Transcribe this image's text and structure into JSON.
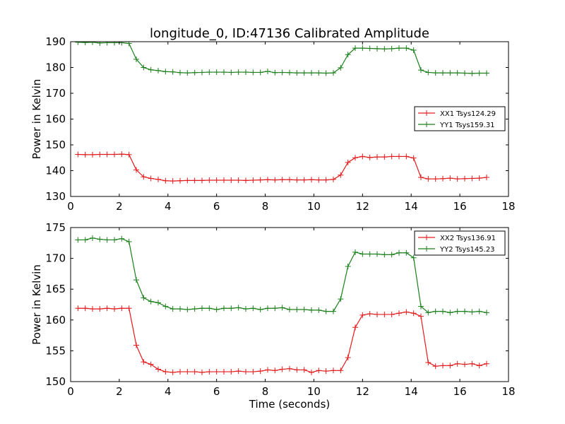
{
  "figure": {
    "title": "longitude_0, ID:47136 Calibrated Amplitude",
    "xlabel": "Time (seconds)",
    "colors": {
      "xx": "#e31a1c",
      "yy": "#1a7f1a"
    }
  },
  "chart_data": [
    {
      "type": "line",
      "title": "longitude_0, ID:47136 Calibrated Amplitude",
      "xlabel": "",
      "ylabel": "Power in Kelvin",
      "xlim": [
        0,
        18
      ],
      "ylim": [
        130,
        190
      ],
      "xticks": [
        "0",
        "2",
        "4",
        "6",
        "8",
        "10",
        "12",
        "14",
        "16",
        "18"
      ],
      "yticks": [
        "130",
        "140",
        "150",
        "160",
        "170",
        "180",
        "190"
      ],
      "grid": false,
      "legend_position": "right",
      "x": [
        0.3,
        0.6,
        0.9,
        1.2,
        1.5,
        1.8,
        2.1,
        2.4,
        2.7,
        3.0,
        3.3,
        3.6,
        3.9,
        4.2,
        4.5,
        4.8,
        5.1,
        5.4,
        5.7,
        6.0,
        6.3,
        6.6,
        6.9,
        7.2,
        7.5,
        7.8,
        8.1,
        8.4,
        8.7,
        9.0,
        9.3,
        9.6,
        9.9,
        10.2,
        10.5,
        10.8,
        11.1,
        11.4,
        11.7,
        12.0,
        12.3,
        12.6,
        12.9,
        13.2,
        13.5,
        13.8,
        14.1,
        14.4,
        14.7,
        15.0,
        15.3,
        15.6,
        15.9,
        16.2,
        16.5,
        16.8,
        17.1
      ],
      "series": [
        {
          "name": "XX1 Tsys124.29",
          "color": "#e31a1c",
          "values": [
            146.3,
            146.2,
            146.2,
            146.3,
            146.3,
            146.3,
            146.4,
            146.2,
            140.3,
            137.6,
            137.0,
            136.6,
            136.1,
            136.0,
            136.1,
            136.2,
            136.2,
            136.2,
            136.3,
            136.3,
            136.3,
            136.3,
            136.3,
            136.2,
            136.3,
            136.4,
            136.5,
            136.4,
            136.5,
            136.5,
            136.4,
            136.4,
            136.5,
            136.4,
            136.4,
            136.6,
            138.3,
            143.2,
            145.0,
            145.5,
            145.1,
            145.3,
            145.3,
            145.5,
            145.5,
            145.5,
            144.9,
            137.4,
            136.8,
            136.8,
            136.9,
            137.1,
            136.8,
            136.9,
            137.0,
            137.1,
            137.4
          ]
        },
        {
          "name": "YY1 Tsys159.31",
          "color": "#1a7f1a",
          "values": [
            189.8,
            189.7,
            189.8,
            189.5,
            189.6,
            189.6,
            189.6,
            189.3,
            183.2,
            180.0,
            179.1,
            178.8,
            178.4,
            178.3,
            178.0,
            177.9,
            178.0,
            178.1,
            178.2,
            178.2,
            178.2,
            178.1,
            178.2,
            178.2,
            178.1,
            178.1,
            178.5,
            178.0,
            178.1,
            178.0,
            177.9,
            177.9,
            177.9,
            177.9,
            177.8,
            177.9,
            179.9,
            185.0,
            187.5,
            187.5,
            187.4,
            187.3,
            187.2,
            187.3,
            187.5,
            187.5,
            186.7,
            179.0,
            178.1,
            177.9,
            177.9,
            177.9,
            177.9,
            177.8,
            177.7,
            177.8,
            177.8
          ]
        }
      ]
    },
    {
      "type": "line",
      "title": "",
      "xlabel": "Time (seconds)",
      "ylabel": "Power in Kelvin",
      "xlim": [
        0,
        18
      ],
      "ylim": [
        150,
        175
      ],
      "xticks": [
        "0",
        "2",
        "4",
        "6",
        "8",
        "10",
        "12",
        "14",
        "16",
        "18"
      ],
      "yticks": [
        "150",
        "155",
        "160",
        "165",
        "170",
        "175"
      ],
      "grid": false,
      "legend_position": "top-right",
      "x": [
        0.3,
        0.6,
        0.9,
        1.2,
        1.5,
        1.8,
        2.1,
        2.4,
        2.7,
        3.0,
        3.3,
        3.6,
        3.9,
        4.2,
        4.5,
        4.8,
        5.1,
        5.4,
        5.7,
        6.0,
        6.3,
        6.6,
        6.9,
        7.2,
        7.5,
        7.8,
        8.1,
        8.4,
        8.7,
        9.0,
        9.3,
        9.6,
        9.9,
        10.2,
        10.5,
        10.8,
        11.1,
        11.4,
        11.7,
        12.0,
        12.3,
        12.6,
        12.9,
        13.2,
        13.5,
        13.8,
        14.1,
        14.4,
        14.7,
        15.0,
        15.3,
        15.6,
        15.9,
        16.2,
        16.5,
        16.8,
        17.1
      ],
      "series": [
        {
          "name": "XX2 Tsys136.91",
          "color": "#e31a1c",
          "values": [
            161.9,
            161.9,
            161.8,
            161.8,
            161.9,
            161.8,
            161.9,
            161.9,
            155.9,
            153.2,
            152.8,
            152.0,
            151.6,
            151.5,
            151.6,
            151.6,
            151.6,
            151.5,
            151.6,
            151.6,
            151.6,
            151.6,
            151.7,
            151.6,
            151.6,
            151.7,
            151.9,
            151.8,
            152.0,
            152.1,
            151.9,
            151.9,
            151.5,
            151.8,
            151.7,
            151.8,
            151.8,
            153.9,
            158.8,
            160.8,
            161.0,
            160.9,
            160.9,
            160.9,
            161.1,
            161.3,
            161.1,
            160.6,
            153.1,
            152.5,
            152.6,
            152.6,
            152.9,
            152.8,
            152.9,
            152.6,
            152.9
          ]
        },
        {
          "name": "YY2 Tsys145.23",
          "color": "#1a7f1a",
          "values": [
            173.0,
            173.0,
            173.3,
            173.1,
            173.0,
            173.0,
            173.2,
            172.7,
            166.5,
            163.6,
            163.0,
            162.8,
            162.2,
            161.8,
            161.8,
            161.7,
            161.8,
            161.9,
            161.9,
            161.7,
            161.9,
            161.9,
            162.0,
            161.8,
            161.9,
            161.7,
            161.9,
            161.9,
            162.0,
            161.7,
            161.7,
            161.7,
            161.6,
            161.6,
            161.4,
            161.4,
            163.4,
            168.7,
            171.0,
            170.7,
            170.7,
            170.7,
            170.6,
            170.6,
            170.9,
            170.9,
            170.1,
            162.2,
            161.2,
            161.4,
            161.4,
            161.2,
            161.4,
            161.4,
            161.3,
            161.4,
            161.2
          ]
        }
      ]
    }
  ]
}
